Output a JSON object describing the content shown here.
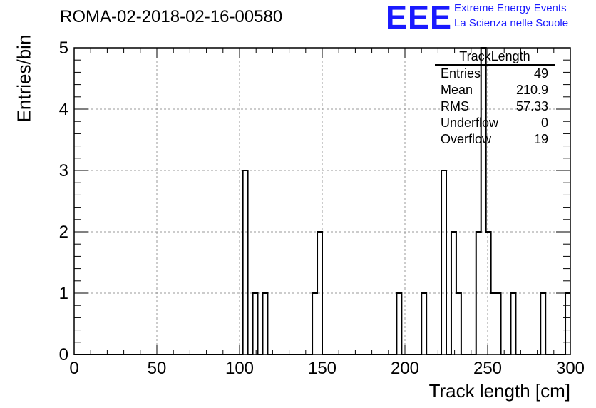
{
  "title": "ROMA-02-2018-02-16-00580",
  "logo": {
    "mark": "EEE",
    "line1": "Extreme Energy Events",
    "line2": "La Scienza nelle Scuole",
    "color": "#1a1aff"
  },
  "stats_box": {
    "title": "TrackLength",
    "rows": [
      {
        "label": "Entries",
        "value": "49"
      },
      {
        "label": "Mean",
        "value": "210.9"
      },
      {
        "label": "RMS",
        "value": "57.33"
      },
      {
        "label": "Underflow",
        "value": "0"
      },
      {
        "label": "Overflow",
        "value": "19"
      }
    ]
  },
  "chart_data": {
    "type": "bar",
    "histogram": true,
    "xlabel": "Track length [cm]",
    "ylabel": "Entries/bin",
    "xlim": [
      0,
      300
    ],
    "ylim": [
      0,
      5
    ],
    "bin_width": 3,
    "x_ticks": [
      0,
      50,
      100,
      150,
      200,
      250,
      300
    ],
    "y_ticks": [
      0,
      1,
      2,
      3,
      4,
      5
    ],
    "grid": true,
    "bins": [
      {
        "x": 102,
        "count": 3
      },
      {
        "x": 108,
        "count": 1
      },
      {
        "x": 114,
        "count": 1
      },
      {
        "x": 144,
        "count": 1
      },
      {
        "x": 147,
        "count": 2
      },
      {
        "x": 195,
        "count": 1
      },
      {
        "x": 210,
        "count": 1
      },
      {
        "x": 222,
        "count": 3
      },
      {
        "x": 228,
        "count": 2
      },
      {
        "x": 231,
        "count": 1
      },
      {
        "x": 243,
        "count": 2
      },
      {
        "x": 246,
        "count": 5
      },
      {
        "x": 249,
        "count": 2
      },
      {
        "x": 252,
        "count": 1
      },
      {
        "x": 255,
        "count": 1
      },
      {
        "x": 264,
        "count": 1
      },
      {
        "x": 282,
        "count": 1
      },
      {
        "x": 297,
        "count": 1
      }
    ]
  }
}
